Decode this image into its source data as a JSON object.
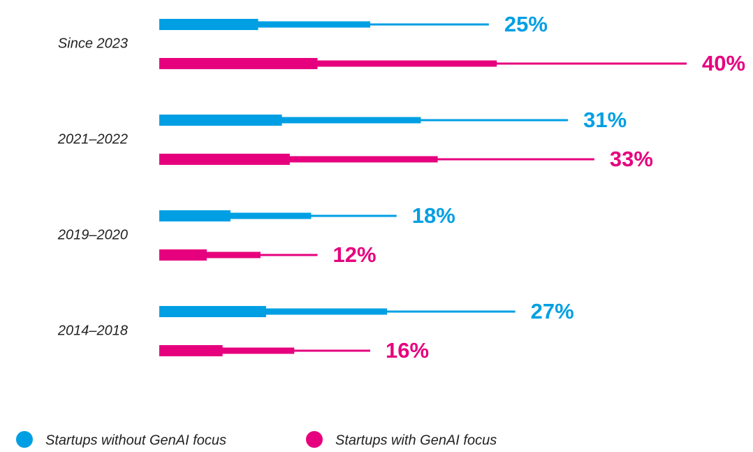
{
  "chart_data": {
    "type": "bar",
    "orientation": "horizontal",
    "categories": [
      "Since 2023",
      "2021–2022",
      "2019–2020",
      "2014–2018"
    ],
    "series": [
      {
        "name": "Startups without GenAI focus",
        "color": "#009fe3",
        "values": [
          25,
          31,
          18,
          27
        ],
        "value_labels": [
          "25%",
          "31%",
          "18%",
          "27%"
        ]
      },
      {
        "name": "Startups with GenAI focus",
        "color": "#e6007e",
        "values": [
          40,
          33,
          12,
          16
        ],
        "value_labels": [
          "40%",
          "33%",
          "12%",
          "16%"
        ]
      }
    ],
    "legend": "bottom-left"
  }
}
